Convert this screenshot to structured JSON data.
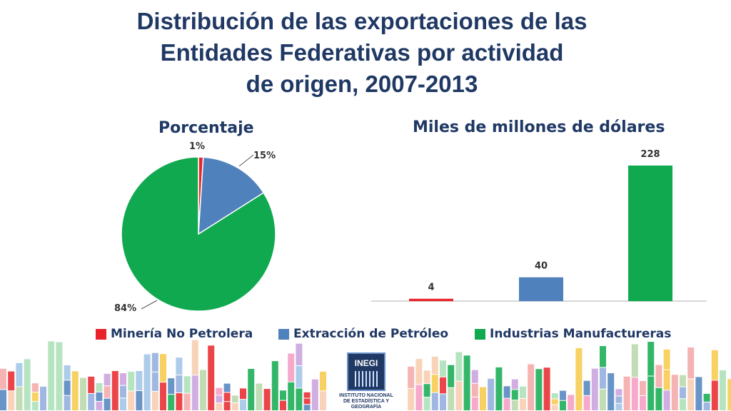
{
  "title": {
    "line1": "Distribución de las exportaciones de las",
    "line2": "Entidades Federativas por actividad",
    "line3": "de origen, 2007-2013"
  },
  "logo": {
    "name": "INEGI",
    "caption1": "INSTITUTO NACIONAL",
    "caption2": "DE ESTADÍSTICA Y GEOGRAFÍA"
  },
  "chart_data": [
    {
      "type": "pie",
      "title": "Porcentaje",
      "categories": [
        "Minería No Petrolera",
        "Extracción de Petróleo",
        "Industrias Manufactureras"
      ],
      "values": [
        1,
        15,
        84
      ],
      "labels": [
        "1%",
        "15%",
        "84%"
      ],
      "colors": [
        "#e8242a",
        "#4f81bd",
        "#10a94f"
      ]
    },
    {
      "type": "bar",
      "title": "Miles de millones de dólares",
      "categories": [
        "Minería No Petrolera",
        "Extracción de Petróleo",
        "Industrias Manufactureras"
      ],
      "values": [
        4,
        40,
        228
      ],
      "labels": [
        "4",
        "40",
        "228"
      ],
      "colors": [
        "#e8242a",
        "#4f81bd",
        "#10a94f"
      ],
      "ylim": [
        0,
        240
      ],
      "grid": false
    }
  ],
  "legend": {
    "placement": "bottom",
    "items": [
      {
        "label": "Minería No Petrolera",
        "color": "#e8242a"
      },
      {
        "label": "Extracción de Petróleo",
        "color": "#4f81bd"
      },
      {
        "label": "Industrias Manufactureras",
        "color": "#10a94f"
      }
    ]
  }
}
